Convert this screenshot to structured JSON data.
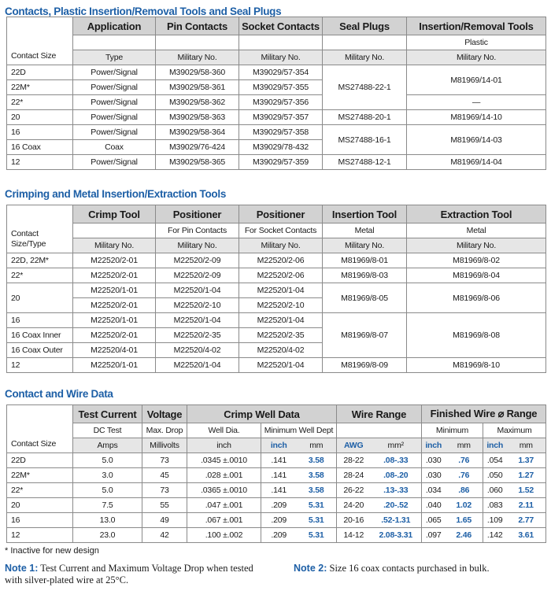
{
  "table1": {
    "title": "Contacts, Plastic Insertion/Removal Tools and Seal Plugs",
    "size_header": "Contact Size",
    "headers": [
      "Application",
      "Pin Contacts",
      "Socket Contacts",
      "Seal Plugs",
      "Insertion/Removal Tools"
    ],
    "subheaders": [
      "",
      "",
      "",
      "",
      "Plastic"
    ],
    "units": [
      "Type",
      "Military No.",
      "Military No.",
      "Military No.",
      "Military No."
    ],
    "rows": [
      [
        "22D",
        "Power/Signal",
        "M39029/58-360",
        "M39029/57-354",
        "MS27488-22-1",
        "M81969/14-01"
      ],
      [
        "22M*",
        "Power/Signal",
        "M39029/58-361",
        "M39029/57-355",
        null,
        null
      ],
      [
        "22*",
        "Power/Signal",
        "M39029/58-362",
        "M39029/57-356",
        null,
        "—"
      ],
      [
        "20",
        "Power/Signal",
        "M39029/58-363",
        "M39029/57-357",
        "MS27488-20-1",
        "M81969/14-10"
      ],
      [
        "16",
        "Power/Signal",
        "M39029/58-364",
        "M39029/57-358",
        "MS27488-16-1",
        "M81969/14-03"
      ],
      [
        "16 Coax",
        "Coax",
        "M39029/76-424",
        "M39029/78-432",
        null,
        null
      ],
      [
        "12",
        "Power/Signal",
        "M39029/58-365",
        "M39029/57-359",
        "MS27488-12-1",
        "M81969/14-04"
      ]
    ]
  },
  "table2": {
    "title": "Crimping and Metal Insertion/Extraction Tools",
    "size_header": "Contact Size/Type",
    "headers": [
      "Crimp Tool",
      "Positioner",
      "Positioner",
      "Insertion Tool",
      "Extraction Tool"
    ],
    "subheaders": [
      "",
      "For Pin Contacts",
      "For Socket Contacts",
      "Metal",
      "Metal"
    ],
    "units": [
      "Military No.",
      "Military No.",
      "Military No.",
      "Military No.",
      "Military No."
    ],
    "rows": [
      [
        "22D, 22M*",
        "M22520/2-01",
        "M22520/2-09",
        "M22520/2-06",
        "M81969/8-01",
        "M81969/8-02"
      ],
      [
        "22*",
        "M22520/2-01",
        "M22520/2-09",
        "M22520/2-06",
        "M81969/8-03",
        "M81969/8-04"
      ],
      [
        "20",
        "M22520/1-01",
        "M22520/1-04",
        "M22520/1-04",
        "M81969/8-05",
        "M81969/8-06"
      ],
      [
        null,
        "M22520/2-01",
        "M22520/2-10",
        "M22520/2-10",
        null,
        null
      ],
      [
        "16",
        "M22520/1-01",
        "M22520/1-04",
        "M22520/1-04",
        "M81969/8-07",
        "M81969/8-08"
      ],
      [
        "16 Coax Inner",
        "M22520/2-01",
        "M22520/2-35",
        "M22520/2-35",
        null,
        null
      ],
      [
        "16 Coax Outer",
        "M22520/4-01",
        "M22520/4-02",
        "M22520/4-02",
        null,
        null
      ],
      [
        "12",
        "M22520/1-01",
        "M22520/1-04",
        "M22520/1-04",
        "M81969/8-09",
        "M81969/8-10"
      ]
    ]
  },
  "table3": {
    "title": "Contact and Wire Data",
    "size_header": "Contact Size",
    "headers": [
      "Test Current",
      "Voltage",
      "Crimp Well Data",
      "Wire Range",
      "Finished Wire ⌀ Range"
    ],
    "subheaders": [
      "DC Test",
      "Max. Drop",
      "Well Dia.",
      "Minimum Well Dept",
      "",
      "Minimum",
      "Maximum"
    ],
    "units": [
      "Amps",
      "Millivolts",
      "inch",
      "inch",
      "mm",
      "AWG",
      "mm²",
      "inch",
      "mm",
      "inch",
      "mm"
    ],
    "rows": [
      [
        "22D",
        "5.0",
        "73",
        ".0345 ±.0010",
        ".141",
        "3.58",
        "28-22",
        ".08-.33",
        ".030",
        ".76",
        ".054",
        "1.37"
      ],
      [
        "22M*",
        "3.0",
        "45",
        ".028 ±.001",
        ".141",
        "3.58",
        "28-24",
        ".08-.20",
        ".030",
        ".76",
        ".050",
        "1.27"
      ],
      [
        "22*",
        "5.0",
        "73",
        ".0365 ±.0010",
        ".141",
        "3.58",
        "26-22",
        ".13-.33",
        ".034",
        ".86",
        ".060",
        "1.52"
      ],
      [
        "20",
        "7.5",
        "55",
        ".047 ±.001",
        ".209",
        "5.31",
        "24-20",
        ".20-.52",
        ".040",
        "1.02",
        ".083",
        "2.11"
      ],
      [
        "16",
        "13.0",
        "49",
        ".067 ±.001",
        ".209",
        "5.31",
        "20-16",
        ".52-1.31",
        ".065",
        "1.65",
        ".109",
        "2.77"
      ],
      [
        "12",
        "23.0",
        "42",
        ".100 ±.002",
        ".209",
        "5.31",
        "14-12",
        "2.08-3.31",
        ".097",
        "2.46",
        ".142",
        "3.61"
      ]
    ]
  },
  "footnote": "*  Inactive for new design",
  "note1": {
    "label": "Note 1:",
    "text": " Test Current and Maximum Voltage Drop when tested with silver-plated wire at 25°C."
  },
  "note2": {
    "label": "Note 2:",
    "text": " Size 16 coax contacts purchased in bulk."
  },
  "colors": {
    "accent": "#1d5fa6",
    "header_bg": "#d2d2d2",
    "unit_bg": "#e6e6e6"
  }
}
